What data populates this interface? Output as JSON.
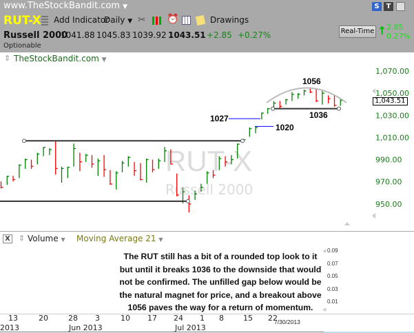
{
  "header": {
    "site": "www.TheStockBandit.com",
    "symbol": "RUT-X",
    "add_indicator": "Add Indicator",
    "period": "Daily",
    "drawings": "Drawings",
    "s_button": "S",
    "t_button": "T",
    "realtime": "Real-Time",
    "rt_change": "2.85",
    "rt_pct": "0.27%"
  },
  "quote": {
    "name": "Russell 2000",
    "open": "1041.88",
    "high": "1045.83",
    "low": "1039.92",
    "last": "1043.51",
    "change": "+2.85",
    "pct": "+0.27%",
    "optionable": "Optionable"
  },
  "chart_header": {
    "label": "TheStockBandit.com"
  },
  "watermark": {
    "symbol": "RUT-X",
    "name": "Russell 2000"
  },
  "lower_panel": {
    "volume": "Volume",
    "ma": "Moving Average 21",
    "close": "X",
    "note": "The RUT still has a bit of a rounded top look to it but until it breaks 1036 to the downside that would not be confirmed. The unfilled gap below would be the natural magnet for price, and a breakout above 1056 paves the way for a return of momentum.",
    "axis": [
      "0.09",
      "0.07",
      "0.05",
      "0.03",
      "0.01"
    ]
  },
  "colors": {
    "up": "#008000",
    "down": "#ff0000",
    "axis_text": "#1a7a1a",
    "annotation_line": "#0000ff",
    "header_bg": "#a9a9a9"
  },
  "chart_data": {
    "type": "ohlc",
    "ylim": [
      940,
      1075
    ],
    "yticks": [
      "1,070.00",
      "1,050.00",
      "1,030.00",
      "1,010.00",
      "990.00",
      "970.00",
      "950.00"
    ],
    "last_price_label": "1,043.51",
    "x_ticks": [
      "13",
      "20",
      "28",
      "3",
      "10",
      "17",
      "24",
      "1",
      "8",
      "15",
      "22"
    ],
    "x_months": [
      "2013",
      "Jun 2013",
      "Jul 2013"
    ],
    "last_date": "7/30/2013",
    "bars": [
      {
        "h": 970.3,
        "l": 964.0,
        "c": 965,
        "d": "down"
      },
      {
        "h": 975.4,
        "l": 967.2,
        "c": 975,
        "d": "up"
      },
      {
        "h": 975.4,
        "l": 970.3,
        "c": 972,
        "d": "down"
      },
      {
        "h": 985.8,
        "l": 973.4,
        "c": 985,
        "d": "up"
      },
      {
        "h": 991.0,
        "l": 981.7,
        "c": 990,
        "d": "up"
      },
      {
        "h": 990.0,
        "l": 981.7,
        "c": 984,
        "d": "down"
      },
      {
        "h": 996.2,
        "l": 985.8,
        "c": 995,
        "d": "up"
      },
      {
        "h": 1001.4,
        "l": 993.1,
        "c": 1001,
        "d": "up"
      },
      {
        "h": 1000.3,
        "l": 994.1,
        "c": 999,
        "d": "up"
      },
      {
        "h": 1006.6,
        "l": 976.5,
        "c": 982,
        "d": "down"
      },
      {
        "h": 983.7,
        "l": 969.2,
        "c": 982,
        "d": "up"
      },
      {
        "h": 983.7,
        "l": 973.4,
        "c": 983,
        "d": "up"
      },
      {
        "h": 1004.5,
        "l": 983.7,
        "c": 1000,
        "d": "up"
      },
      {
        "h": 996.2,
        "l": 979.6,
        "c": 988,
        "d": "down"
      },
      {
        "h": 995.2,
        "l": 987.9,
        "c": 994,
        "d": "up"
      },
      {
        "h": 994.1,
        "l": 982.7,
        "c": 986,
        "d": "down"
      },
      {
        "h": 991.0,
        "l": 975.4,
        "c": 989,
        "d": "up"
      },
      {
        "h": 994.1,
        "l": 974.4,
        "c": 981,
        "d": "down"
      },
      {
        "h": 980.6,
        "l": 967.2,
        "c": 968,
        "d": "down"
      },
      {
        "h": 979.6,
        "l": 963.0,
        "c": 978,
        "d": "up"
      },
      {
        "h": 988.9,
        "l": 978.6,
        "c": 987,
        "d": "up"
      },
      {
        "h": 993.1,
        "l": 983.7,
        "c": 992,
        "d": "up"
      },
      {
        "h": 987.9,
        "l": 975.4,
        "c": 980,
        "d": "down"
      },
      {
        "h": 986.9,
        "l": 971.3,
        "c": 972,
        "d": "down"
      },
      {
        "h": 991.0,
        "l": 969.2,
        "c": 990,
        "d": "up"
      },
      {
        "h": 990.0,
        "l": 978.6,
        "c": 981,
        "d": "down"
      },
      {
        "h": 991.0,
        "l": 981.7,
        "c": 989,
        "d": "up"
      },
      {
        "h": 1001.4,
        "l": 987.9,
        "c": 998,
        "d": "up"
      },
      {
        "h": 999.3,
        "l": 985.8,
        "c": 986,
        "d": "down"
      },
      {
        "h": 977.5,
        "l": 956.8,
        "c": 958,
        "d": "down"
      },
      {
        "h": 965.1,
        "l": 950.6,
        "c": 961,
        "d": "up"
      },
      {
        "h": 957.8,
        "l": 942.3,
        "c": 950,
        "d": "down"
      },
      {
        "h": 961.9,
        "l": 953.7,
        "c": 959,
        "d": "up"
      },
      {
        "h": 968.2,
        "l": 961.0,
        "c": 965,
        "d": "up"
      },
      {
        "h": 979.6,
        "l": 968.2,
        "c": 978,
        "d": "up"
      },
      {
        "h": 980.6,
        "l": 973.4,
        "c": 976,
        "d": "down"
      },
      {
        "h": 993.1,
        "l": 980.6,
        "c": 991,
        "d": "up"
      },
      {
        "h": 993.1,
        "l": 983.7,
        "c": 988,
        "d": "down"
      },
      {
        "h": 994.1,
        "l": 985.8,
        "c": 990,
        "d": "up"
      },
      {
        "h": 1004.5,
        "l": 991.0,
        "c": 1004,
        "d": "up"
      },
      {
        "h": 1008.6,
        "l": 1006.6,
        "c": 1008,
        "d": "up"
      },
      {
        "h": 1019.0,
        "l": 1010.7,
        "c": 1018,
        "d": "up"
      },
      {
        "h": 1020.0,
        "l": 1013.8,
        "c": 1019,
        "d": "up"
      },
      {
        "h": 1032.5,
        "l": 1026.3,
        "c": 1032,
        "d": "up"
      },
      {
        "h": 1036.6,
        "l": 1031.4,
        "c": 1036,
        "d": "up"
      },
      {
        "h": 1042.9,
        "l": 1034.6,
        "c": 1041,
        "d": "up"
      },
      {
        "h": 1042.9,
        "l": 1035.6,
        "c": 1038,
        "d": "down"
      },
      {
        "h": 1044.9,
        "l": 1039.7,
        "c": 1044,
        "d": "up"
      },
      {
        "h": 1051.1,
        "l": 1042.9,
        "c": 1049,
        "d": "up"
      },
      {
        "h": 1050.1,
        "l": 1044.9,
        "c": 1049,
        "d": "up"
      },
      {
        "h": 1053.2,
        "l": 1048.0,
        "c": 1052,
        "d": "up"
      },
      {
        "h": 1055.3,
        "l": 1050.1,
        "c": 1051,
        "d": "down"
      },
      {
        "h": 1054.3,
        "l": 1041.8,
        "c": 1043,
        "d": "down"
      },
      {
        "h": 1053.2,
        "l": 1039.7,
        "c": 1050,
        "d": "up"
      },
      {
        "h": 1048.0,
        "l": 1040.8,
        "c": 1045,
        "d": "down"
      },
      {
        "h": 1048.0,
        "l": 1037.7,
        "c": 1039,
        "d": "down"
      },
      {
        "h": 1044.9,
        "l": 1038.7,
        "c": 1043.5,
        "d": "up"
      }
    ],
    "annotations": {
      "resistance": 1007,
      "support": 952.5,
      "gap_top": "1027",
      "gap_bottom": "1020",
      "range_low": "1036",
      "range_high": "1056"
    }
  }
}
